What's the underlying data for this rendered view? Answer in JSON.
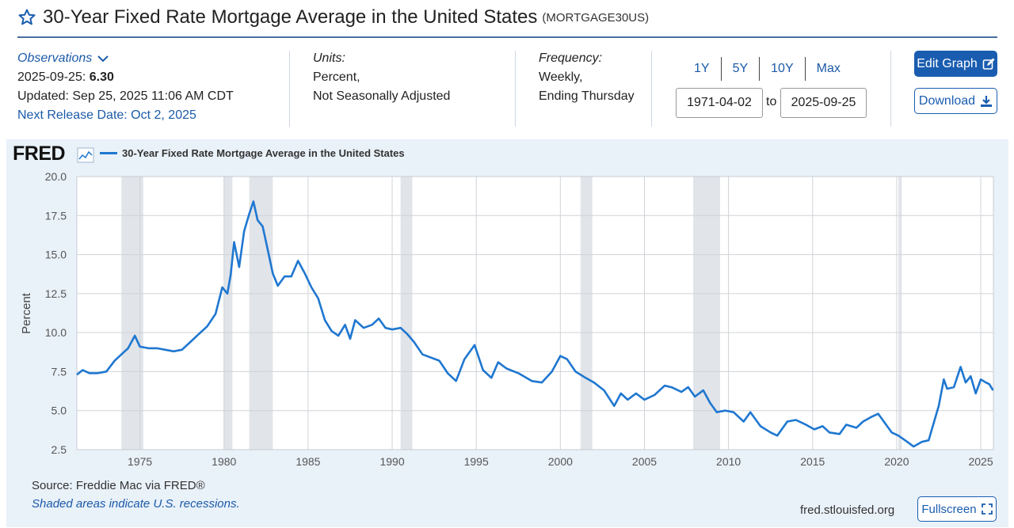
{
  "header": {
    "title": "30-Year Fixed Rate Mortgage Average in the United States",
    "series_id": "(MORTGAGE30US)"
  },
  "observations": {
    "heading": "Observations",
    "date": "2025-09-25:",
    "value": "6.30",
    "updated": "Updated: Sep 25, 2025 11:06 AM CDT",
    "next_release": "Next Release Date: Oct 2, 2025"
  },
  "units": {
    "label": "Units:",
    "line1": "Percent,",
    "line2": "Not Seasonally Adjusted"
  },
  "frequency": {
    "label": "Frequency:",
    "line1": "Weekly,",
    "line2": "Ending Thursday"
  },
  "range": {
    "buttons": [
      "1Y",
      "5Y",
      "10Y",
      "Max"
    ],
    "start": "1971-04-02",
    "to_label": "to",
    "end": "2025-09-25"
  },
  "actions": {
    "edit": "Edit Graph",
    "download": "Download",
    "fullscreen": "Fullscreen"
  },
  "footer": {
    "source": "Source: Freddie Mac via FRED®",
    "recession_note": "Shaded areas indicate U.S. recessions.",
    "url": "fred.stlouisfed.org"
  },
  "logo": "FRED",
  "colors": {
    "series": "#1f77d0",
    "accent": "#1a5db0",
    "panel": "#e9f1f9",
    "recession": "#e1e4e9"
  },
  "chart_data": {
    "type": "line",
    "title": "30-Year Fixed Rate Mortgage Average in the United States",
    "legend": "30-Year Fixed Rate Mortgage Average in the United States",
    "ylabel": "Percent",
    "xlabel": "",
    "xlim": [
      1971.25,
      2025.75
    ],
    "ylim": [
      2.5,
      20.0
    ],
    "yticks": [
      "2.5",
      "5.0",
      "7.5",
      "10.0",
      "12.5",
      "15.0",
      "17.5",
      "20.0"
    ],
    "xticks": [
      "1975",
      "1980",
      "1985",
      "1990",
      "1995",
      "2000",
      "2005",
      "2010",
      "2015",
      "2020",
      "2025"
    ],
    "recessions": [
      [
        1973.9,
        1975.2
      ],
      [
        1980.0,
        1980.5
      ],
      [
        1981.5,
        1982.9
      ],
      [
        1990.5,
        1991.2
      ],
      [
        2001.2,
        2001.9
      ],
      [
        2007.9,
        2009.5
      ],
      [
        2020.1,
        2020.3
      ]
    ],
    "series": [
      {
        "name": "30-Year Fixed Rate Mortgage Average in the United States",
        "x": [
          1971.25,
          1971.6,
          1972.0,
          1972.5,
          1973.0,
          1973.5,
          1973.9,
          1974.3,
          1974.7,
          1975.0,
          1975.5,
          1976.0,
          1976.5,
          1977.0,
          1977.5,
          1978.0,
          1978.5,
          1979.0,
          1979.5,
          1979.9,
          1980.2,
          1980.4,
          1980.6,
          1980.9,
          1981.2,
          1981.5,
          1981.75,
          1982.0,
          1982.3,
          1982.6,
          1982.9,
          1983.2,
          1983.6,
          1984.0,
          1984.4,
          1984.8,
          1985.2,
          1985.6,
          1986.0,
          1986.4,
          1986.8,
          1987.2,
          1987.5,
          1987.8,
          1988.3,
          1988.8,
          1989.2,
          1989.6,
          1990.0,
          1990.5,
          1990.9,
          1991.3,
          1991.8,
          1992.3,
          1992.8,
          1993.3,
          1993.8,
          1994.3,
          1994.9,
          1995.4,
          1995.9,
          1996.3,
          1996.8,
          1997.5,
          1998.3,
          1998.9,
          1999.5,
          2000.0,
          2000.4,
          2000.9,
          2001.5,
          2002.0,
          2002.6,
          2003.2,
          2003.6,
          2004.0,
          2004.5,
          2005.0,
          2005.6,
          2006.2,
          2006.6,
          2007.2,
          2007.6,
          2008.0,
          2008.5,
          2008.9,
          2009.3,
          2009.8,
          2010.3,
          2010.9,
          2011.3,
          2011.9,
          2012.5,
          2012.9,
          2013.5,
          2014.0,
          2014.6,
          2015.1,
          2015.6,
          2016.0,
          2016.6,
          2017.0,
          2017.6,
          2018.0,
          2018.5,
          2018.9,
          2019.3,
          2019.7,
          2020.1,
          2020.5,
          2021.0,
          2021.5,
          2021.9,
          2022.2,
          2022.5,
          2022.8,
          2023.0,
          2023.4,
          2023.8,
          2024.1,
          2024.4,
          2024.7,
          2025.0,
          2025.3,
          2025.5,
          2025.73
        ],
        "values": [
          7.3,
          7.6,
          7.4,
          7.4,
          7.5,
          8.2,
          8.6,
          9.0,
          9.8,
          9.1,
          9.0,
          9.0,
          8.9,
          8.8,
          8.9,
          9.4,
          9.9,
          10.4,
          11.2,
          12.9,
          12.5,
          13.7,
          15.8,
          14.2,
          16.5,
          17.6,
          18.4,
          17.2,
          16.8,
          15.3,
          13.8,
          13.0,
          13.6,
          13.6,
          14.6,
          13.8,
          12.9,
          12.2,
          10.8,
          10.1,
          9.8,
          10.5,
          9.6,
          10.8,
          10.3,
          10.5,
          10.9,
          10.3,
          10.2,
          10.3,
          9.9,
          9.4,
          8.6,
          8.4,
          8.2,
          7.4,
          6.9,
          8.3,
          9.2,
          7.6,
          7.1,
          8.1,
          7.7,
          7.4,
          6.9,
          6.8,
          7.5,
          8.5,
          8.3,
          7.5,
          7.1,
          6.8,
          6.3,
          5.3,
          6.1,
          5.7,
          6.1,
          5.7,
          6.0,
          6.6,
          6.5,
          6.2,
          6.5,
          5.9,
          6.3,
          5.5,
          4.9,
          5.0,
          4.9,
          4.3,
          4.9,
          4.0,
          3.6,
          3.4,
          4.3,
          4.4,
          4.1,
          3.8,
          4.0,
          3.6,
          3.5,
          4.1,
          3.9,
          4.3,
          4.6,
          4.8,
          4.2,
          3.6,
          3.4,
          3.1,
          2.7,
          3.0,
          3.1,
          4.2,
          5.3,
          7.0,
          6.4,
          6.5,
          7.8,
          6.8,
          7.2,
          6.1,
          7.0,
          6.8,
          6.7,
          6.3
        ]
      }
    ]
  }
}
